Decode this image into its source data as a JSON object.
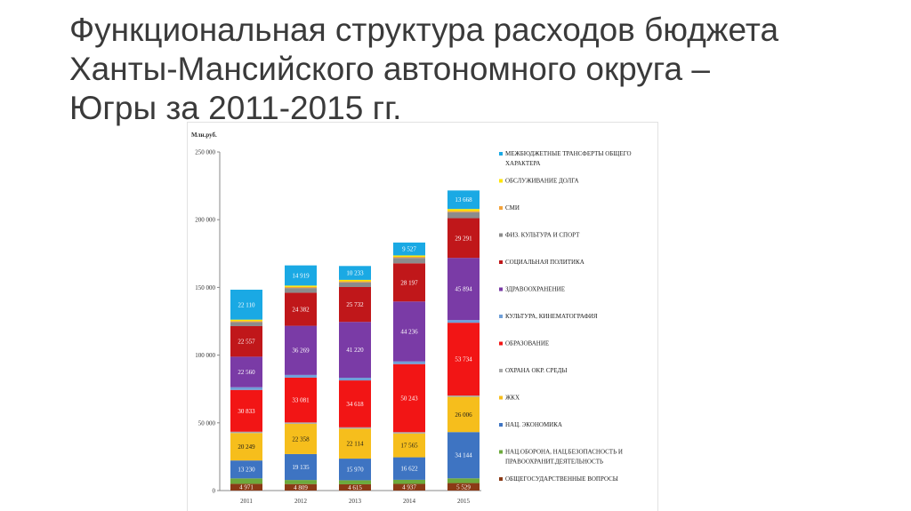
{
  "slide": {
    "title_lines": [
      "Функциональная структура расходов бюджета",
      "Ханты-Мансийского автономного округа –",
      "Югры за 2011-2015 гг."
    ]
  },
  "chart_data": {
    "type": "bar",
    "stacked": true,
    "unit_label": "Млн.руб.",
    "categories": [
      "2011",
      "2012",
      "2013",
      "2014",
      "2015"
    ],
    "ylim": [
      0,
      250000
    ],
    "yticks": [
      0,
      50000,
      100000,
      150000,
      200000,
      250000
    ],
    "ytick_labels": [
      "0",
      "50 000",
      "100 000",
      "150 000",
      "200 000",
      "250 000"
    ],
    "grid": false,
    "legend_position": "right",
    "series": [
      {
        "name": "ОБЩЕГОСУДАРСТВЕННЫЕ ВОПРОСЫ",
        "color": "#8B3A16",
        "values": [
          4971,
          4809,
          4615,
          4937,
          5529
        ],
        "labels": [
          "4 971",
          "4 809",
          "4 615",
          "4 937",
          "5 529"
        ]
      },
      {
        "name": "НАЦ.ОБОРОНА, НАЦ.БЕЗОПАСНОСТЬ И ПРАВООХРАНИТ.ДЕЯТЕЛЬНОСТЬ",
        "color": "#6DAA3C",
        "values": [
          4000,
          3000,
          3000,
          3000,
          3500
        ],
        "labels": [
          "",
          "",
          "",
          "",
          ""
        ]
      },
      {
        "name": "НАЦ. ЭКОНОМИКА",
        "color": "#3E74C2",
        "values": [
          13230,
          19135,
          15970,
          16622,
          34144
        ],
        "labels": [
          "13 230",
          "19 135",
          "15 970",
          "16 622",
          "34 144"
        ]
      },
      {
        "name": "ЖКХ",
        "color": "#F6BE1C",
        "values": [
          20249,
          22358,
          22114,
          17565,
          26006
        ],
        "labels": [
          "20 249",
          "22 358",
          "22 114",
          "17 565",
          "26 006"
        ]
      },
      {
        "name": "ОХРАНА ОКР. СРЕДЫ",
        "color": "#A9A9A9",
        "values": [
          1000,
          1000,
          1000,
          1000,
          1000
        ],
        "labels": [
          "",
          "",
          "",
          "",
          ""
        ]
      },
      {
        "name": "ОБРАЗОВАНИЕ",
        "color": "#F21515",
        "values": [
          30833,
          33081,
          34618,
          50243,
          53734
        ],
        "labels": [
          "30 833",
          "33 081",
          "34 618",
          "50 243",
          "53 734"
        ]
      },
      {
        "name": "КУЛЬТУРА, КИНЕМАТОГРАФИЯ",
        "color": "#6F9FD8",
        "values": [
          2000,
          2000,
          2000,
          2000,
          2000
        ],
        "labels": [
          "",
          "",
          "",
          "",
          ""
        ]
      },
      {
        "name": "ЗДРАВООХРАНЕНИЕ",
        "color": "#7A3BA6",
        "values": [
          22560,
          36269,
          41220,
          44236,
          45894
        ],
        "labels": [
          "22 560",
          "36 269",
          "41 220",
          "44 236",
          "45 894"
        ]
      },
      {
        "name": "СОЦИАЛЬНАЯ ПОЛИТИКА",
        "color": "#C0171A",
        "values": [
          22557,
          24382,
          25732,
          28197,
          29291
        ],
        "labels": [
          "22 557",
          "24 382",
          "25 732",
          "28 197",
          "29 291"
        ]
      },
      {
        "name": "ФИЗ. КУЛЬТУРА И СПОРТ",
        "color": "#8C8C8C",
        "values": [
          3000,
          3500,
          3500,
          4000,
          4500
        ],
        "labels": [
          "",
          "",
          "",
          "",
          ""
        ]
      },
      {
        "name": "СМИ",
        "color": "#F3A33A",
        "values": [
          800,
          800,
          800,
          800,
          800
        ],
        "labels": [
          "",
          "",
          "",
          "",
          ""
        ]
      },
      {
        "name": "ОБСЛУЖИВАНИЕ ДОЛГА",
        "color": "#FFE600",
        "values": [
          1000,
          1000,
          1000,
          1000,
          1500
        ],
        "labels": [
          "",
          "",
          "",
          "",
          ""
        ]
      },
      {
        "name": "МЕЖБЮДЖЕТНЫЕ ТРАНСФЕРТЫ ОБЩЕГО ХАРАКТЕРА",
        "color": "#1AA9E4",
        "values": [
          22110,
          14919,
          10233,
          9527,
          13668
        ],
        "labels": [
          "22 110",
          "14 919",
          "10 233",
          "9 527",
          "13 668"
        ]
      }
    ]
  }
}
